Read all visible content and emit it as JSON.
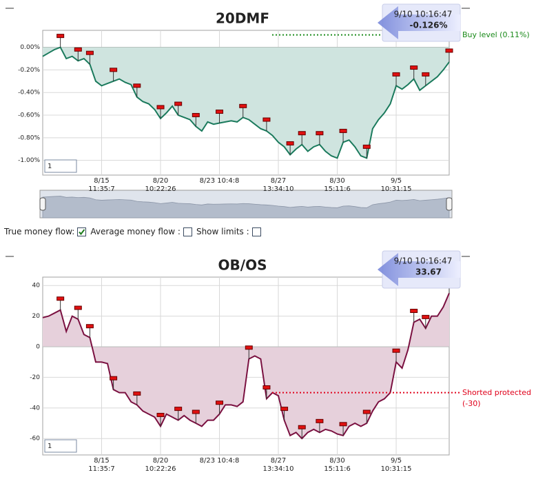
{
  "chart_data": [
    {
      "type": "area",
      "title": "20DMF",
      "categories": [
        null,
        null,
        null,
        null,
        null,
        null,
        null,
        null,
        null,
        null,
        "8/15\n11:35:7",
        null,
        null,
        null,
        null,
        null,
        null,
        null,
        null,
        null,
        "8/20\n10:22:26",
        null,
        null,
        null,
        null,
        null,
        null,
        null,
        null,
        null,
        "8/23 10:4:8",
        null,
        null,
        null,
        null,
        null,
        null,
        null,
        null,
        null,
        "8/27\n13:34:10",
        null,
        null,
        null,
        null,
        null,
        null,
        null,
        null,
        null,
        "8/30\n15:11:6",
        null,
        null,
        null,
        null,
        null,
        null,
        null,
        null,
        null,
        "9/5\n10:31:15",
        null,
        null,
        null,
        null,
        null,
        null,
        null,
        null,
        null
      ],
      "values": [
        -0.08,
        -0.05,
        -0.02,
        0.0,
        -0.1,
        -0.08,
        -0.12,
        -0.1,
        -0.15,
        -0.3,
        -0.34,
        -0.32,
        -0.3,
        -0.28,
        -0.31,
        -0.33,
        -0.44,
        -0.48,
        -0.5,
        -0.55,
        -0.63,
        -0.58,
        -0.52,
        -0.6,
        -0.62,
        -0.64,
        -0.7,
        -0.74,
        -0.66,
        -0.68,
        -0.67,
        -0.66,
        -0.65,
        -0.66,
        -0.62,
        -0.64,
        -0.68,
        -0.72,
        -0.74,
        -0.78,
        -0.84,
        -0.88,
        -0.95,
        -0.9,
        -0.86,
        -0.92,
        -0.88,
        -0.86,
        -0.92,
        -0.96,
        -0.98,
        -0.84,
        -0.82,
        -0.88,
        -0.96,
        -0.98,
        -0.72,
        -0.64,
        -0.58,
        -0.5,
        -0.34,
        -0.37,
        -0.33,
        -0.28,
        -0.38,
        -0.34,
        -0.3,
        -0.26,
        -0.2,
        -0.13
      ],
      "color": "#1a7a5c",
      "fill": "#cfe4df",
      "ylim": [
        -1.13,
        0.15
      ],
      "yticks": [
        {
          "value": 0,
          "label": "0.00%"
        },
        {
          "value": -0.2,
          "label": "-0.20%"
        },
        {
          "value": -0.4,
          "label": "-0.40%"
        },
        {
          "value": -0.6,
          "label": "-0.60%"
        },
        {
          "value": -0.8,
          "label": "-0.80%"
        },
        {
          "value": -1.0,
          "label": "-1.00%"
        }
      ],
      "grid": true,
      "threshold": {
        "value": 0.11,
        "label": "Buy level (0.11%)",
        "color": "#1a8a1a"
      },
      "callout": {
        "time": "9/10 10:16:47",
        "value_label": "-0.126%"
      },
      "range_input": "1"
    },
    {
      "type": "area",
      "title": "OB/OS",
      "categories": [
        null,
        null,
        null,
        null,
        null,
        null,
        null,
        null,
        null,
        null,
        "8/15\n11:35:7",
        null,
        null,
        null,
        null,
        null,
        null,
        null,
        null,
        null,
        "8/20\n10:22:26",
        null,
        null,
        null,
        null,
        null,
        null,
        null,
        null,
        null,
        "8/23 10:4:8",
        null,
        null,
        null,
        null,
        null,
        null,
        null,
        null,
        null,
        "8/27\n13:34:10",
        null,
        null,
        null,
        null,
        null,
        null,
        null,
        null,
        null,
        "8/30\n15:11:6",
        null,
        null,
        null,
        null,
        null,
        null,
        null,
        null,
        null,
        "9/5\n10:31:15",
        null,
        null,
        null,
        null,
        null,
        null,
        null,
        null,
        null
      ],
      "values": [
        19,
        20,
        22,
        24,
        10,
        20,
        18,
        8,
        6,
        -10,
        -10,
        -11,
        -28,
        -30,
        -30,
        -36,
        -38,
        -42,
        -44,
        -46,
        -52,
        -44,
        -46,
        -48,
        -45,
        -48,
        -50,
        -52,
        -48,
        -48,
        -44,
        -38,
        -38,
        -39,
        -36,
        -8,
        -6,
        -8,
        -34,
        -30,
        -32,
        -48,
        -58,
        -56,
        -60,
        -56,
        -54,
        -56,
        -54,
        -55,
        -57,
        -58,
        -52,
        -50,
        -52,
        -50,
        -42,
        -36,
        -34,
        -30,
        -10,
        -14,
        -2,
        16,
        18,
        12,
        20,
        20,
        26,
        35
      ],
      "color": "#7a1040",
      "fill": "#e6d0db",
      "ylim": [
        -70.7,
        45.5
      ],
      "yticks": [
        -60,
        -40,
        -20,
        0,
        20,
        40
      ],
      "grid": true,
      "threshold": {
        "value": -30,
        "label": "Shorted protected\n(-30)",
        "color": "#e0001a"
      },
      "callout": {
        "time": "9/10 10:16:47",
        "value_label": "33.67"
      },
      "range_input": "1"
    }
  ],
  "controls": [
    {
      "label": "True money flow:",
      "checked": true
    },
    {
      "label": "Average money flow :",
      "checked": false
    },
    {
      "label": "Show limits :",
      "checked": false
    }
  ]
}
